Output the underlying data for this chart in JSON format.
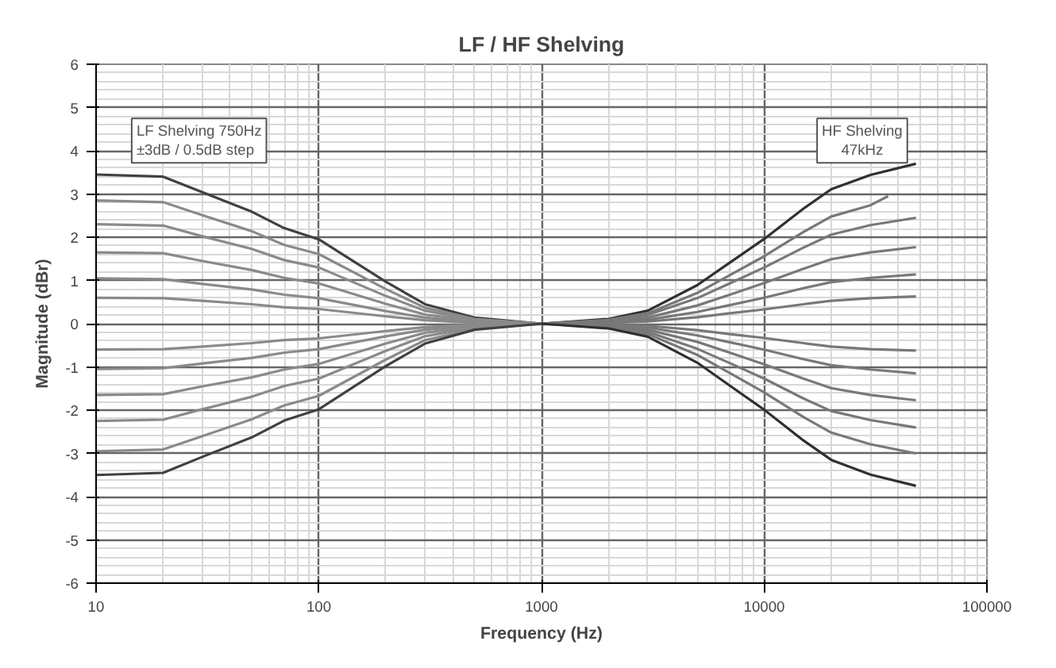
{
  "chart_data": {
    "type": "line",
    "title": "LF / HF Shelving",
    "xlabel": "Frequency (Hz)",
    "ylabel": "Magnitude (dBr)",
    "log": "x",
    "grid": true,
    "marker": "none",
    "line_style": "solid",
    "xlim": [
      10,
      100000
    ],
    "xticks": [
      10,
      100,
      1000,
      10000,
      100000
    ],
    "ylim": [
      -6,
      6
    ],
    "yticks": [
      -6,
      -5,
      -4,
      -3,
      -2,
      -1,
      0,
      1,
      2,
      3,
      4,
      5,
      6
    ],
    "annotations": [
      "LF Shelving 750Hz\n±3dB / 0.5dB step",
      "HF Shelving\n47kHz"
    ],
    "series": [
      {
        "color": "#404040",
        "x": [
          10,
          20,
          30,
          50,
          70,
          100,
          200,
          300,
          500,
          1000
        ],
        "values": [
          3.45,
          3.4,
          3.04,
          2.59,
          2.21,
          1.95,
          0.97,
          0.45,
          0.14,
          0
        ]
      },
      {
        "color": "#8a8a8a",
        "x": [
          10,
          20,
          30,
          50,
          70,
          100,
          200,
          300,
          500,
          1000
        ],
        "values": [
          2.85,
          2.81,
          2.51,
          2.14,
          1.82,
          1.61,
          0.8,
          0.37,
          0.11,
          0
        ]
      },
      {
        "color": "#8a8a8a",
        "x": [
          10,
          20,
          30,
          50,
          70,
          100,
          200,
          300,
          500,
          1000
        ],
        "values": [
          2.3,
          2.27,
          2.02,
          1.73,
          1.47,
          1.3,
          0.64,
          0.3,
          0.09,
          0
        ]
      },
      {
        "color": "#8a8a8a",
        "x": [
          10,
          20,
          30,
          50,
          70,
          100,
          200,
          300,
          500,
          1000
        ],
        "values": [
          1.65,
          1.63,
          1.45,
          1.24,
          1.06,
          0.93,
          0.46,
          0.21,
          0.07,
          0
        ]
      },
      {
        "color": "#8a8a8a",
        "x": [
          10,
          20,
          30,
          50,
          70,
          100,
          200,
          300,
          500,
          1000
        ],
        "values": [
          1.05,
          1.03,
          0.92,
          0.79,
          0.67,
          0.59,
          0.29,
          0.14,
          0.04,
          0
        ]
      },
      {
        "color": "#8a8a8a",
        "x": [
          10,
          20,
          30,
          50,
          70,
          100,
          200,
          300,
          500,
          1000
        ],
        "values": [
          0.6,
          0.59,
          0.53,
          0.45,
          0.38,
          0.34,
          0.17,
          0.08,
          0.02,
          0
        ]
      },
      {
        "color": "#8a8a8a",
        "x": [
          10,
          20,
          30,
          50,
          70,
          100,
          200,
          300,
          500,
          1000
        ],
        "values": [
          -0.6,
          -0.59,
          -0.53,
          -0.45,
          -0.38,
          -0.34,
          -0.17,
          -0.08,
          -0.02,
          0
        ]
      },
      {
        "color": "#8a8a8a",
        "x": [
          10,
          20,
          30,
          50,
          70,
          100,
          200,
          300,
          500,
          1000
        ],
        "values": [
          -1.05,
          -1.03,
          -0.92,
          -0.79,
          -0.67,
          -0.59,
          -0.29,
          -0.14,
          -0.04,
          0
        ]
      },
      {
        "color": "#8a8a8a",
        "x": [
          10,
          20,
          30,
          50,
          70,
          100,
          200,
          300,
          500,
          1000
        ],
        "values": [
          -1.65,
          -1.63,
          -1.45,
          -1.24,
          -1.06,
          -0.93,
          -0.46,
          -0.21,
          -0.07,
          0
        ]
      },
      {
        "color": "#8a8a8a",
        "x": [
          10,
          20,
          30,
          50,
          70,
          100,
          200,
          300,
          500,
          1000
        ],
        "values": [
          -2.25,
          -2.22,
          -1.98,
          -1.69,
          -1.44,
          -1.27,
          -0.63,
          -0.29,
          -0.09,
          0
        ]
      },
      {
        "color": "#8a8a8a",
        "x": [
          10,
          20,
          30,
          50,
          70,
          100,
          200,
          300,
          500,
          1000
        ],
        "values": [
          -2.95,
          -2.91,
          -2.6,
          -2.21,
          -1.89,
          -1.67,
          -0.83,
          -0.38,
          -0.12,
          0
        ]
      },
      {
        "color": "#404040",
        "x": [
          10,
          20,
          30,
          50,
          70,
          100,
          200,
          300,
          500,
          1000
        ],
        "values": [
          -3.5,
          -3.45,
          -3.08,
          -2.63,
          -2.24,
          -1.98,
          -0.98,
          -0.46,
          -0.14,
          0
        ]
      },
      {
        "color": "#303030",
        "x": [
          1000,
          2000,
          3000,
          5000,
          7000,
          10000,
          15000,
          20000,
          30000,
          48000
        ],
        "values": [
          0,
          0.11,
          0.3,
          0.89,
          1.41,
          1.96,
          2.66,
          3.11,
          3.44,
          3.7
        ]
      },
      {
        "color": "#787878",
        "x": [
          1000,
          2000,
          3000,
          5000,
          7000,
          10000,
          15000,
          20000,
          30000,
          36000
        ],
        "values": [
          0,
          0.09,
          0.24,
          0.71,
          1.12,
          1.56,
          2.12,
          2.48,
          2.74,
          2.95
        ]
      },
      {
        "color": "#787878",
        "x": [
          1000,
          2000,
          3000,
          5000,
          7000,
          10000,
          15000,
          20000,
          30000,
          48000
        ],
        "values": [
          0,
          0.07,
          0.2,
          0.59,
          0.93,
          1.3,
          1.76,
          2.06,
          2.28,
          2.45
        ]
      },
      {
        "color": "#787878",
        "x": [
          1000,
          2000,
          3000,
          5000,
          7000,
          10000,
          15000,
          20000,
          30000,
          48000
        ],
        "values": [
          0,
          0.05,
          0.14,
          0.42,
          0.67,
          0.94,
          1.27,
          1.49,
          1.65,
          1.77
        ]
      },
      {
        "color": "#787878",
        "x": [
          1000,
          2000,
          3000,
          5000,
          7000,
          10000,
          15000,
          20000,
          30000,
          48000
        ],
        "values": [
          0,
          0.03,
          0.09,
          0.27,
          0.43,
          0.6,
          0.82,
          0.96,
          1.06,
          1.14
        ]
      },
      {
        "color": "#787878",
        "x": [
          1000,
          2000,
          3000,
          5000,
          7000,
          10000,
          15000,
          20000,
          30000,
          48000
        ],
        "values": [
          0,
          0.02,
          0.05,
          0.15,
          0.24,
          0.33,
          0.45,
          0.53,
          0.59,
          0.63
        ]
      },
      {
        "color": "#787878",
        "x": [
          1000,
          2000,
          3000,
          5000,
          7000,
          10000,
          15000,
          20000,
          30000,
          48000
        ],
        "values": [
          0,
          -0.02,
          -0.05,
          -0.15,
          -0.24,
          -0.33,
          -0.45,
          -0.53,
          -0.59,
          -0.62
        ]
      },
      {
        "color": "#787878",
        "x": [
          1000,
          2000,
          3000,
          5000,
          7000,
          10000,
          15000,
          20000,
          30000,
          48000
        ],
        "values": [
          0,
          -0.03,
          -0.09,
          -0.27,
          -0.43,
          -0.6,
          -0.82,
          -0.96,
          -1.06,
          -1.15
        ]
      },
      {
        "color": "#787878",
        "x": [
          1000,
          2000,
          3000,
          5000,
          7000,
          10000,
          15000,
          20000,
          30000,
          48000
        ],
        "values": [
          0,
          -0.05,
          -0.14,
          -0.42,
          -0.67,
          -0.94,
          -1.27,
          -1.49,
          -1.65,
          -1.77
        ]
      },
      {
        "color": "#787878",
        "x": [
          1000,
          2000,
          3000,
          5000,
          7000,
          10000,
          15000,
          20000,
          30000,
          48000
        ],
        "values": [
          0,
          -0.07,
          -0.19,
          -0.58,
          -0.91,
          -1.27,
          -1.73,
          -2.02,
          -2.23,
          -2.4
        ]
      },
      {
        "color": "#787878",
        "x": [
          1000,
          2000,
          3000,
          5000,
          7000,
          10000,
          15000,
          20000,
          30000,
          48000
        ],
        "values": [
          0,
          -0.09,
          -0.24,
          -0.72,
          -1.14,
          -1.59,
          -2.16,
          -2.52,
          -2.79,
          -3.0
        ]
      },
      {
        "color": "#303030",
        "x": [
          1000,
          2000,
          3000,
          5000,
          7000,
          10000,
          15000,
          20000,
          30000,
          48000
        ],
        "values": [
          0,
          -0.11,
          -0.3,
          -0.9,
          -1.43,
          -1.99,
          -2.7,
          -3.15,
          -3.49,
          -3.75
        ]
      }
    ]
  }
}
